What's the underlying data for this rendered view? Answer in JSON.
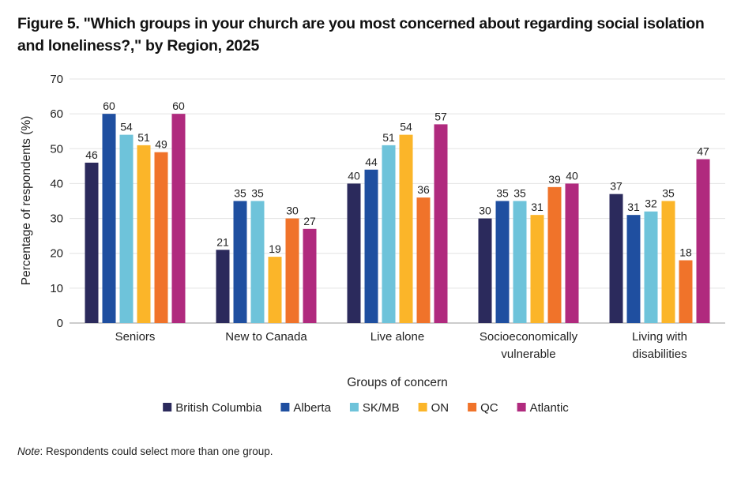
{
  "title": "Figure 5. \"Which groups in your church are you most concerned about regarding social isolation and loneliness?,\" by Region, 2025",
  "note": {
    "lead": "Note",
    "text": ": Respondents could select more than one group."
  },
  "chart_data": {
    "type": "bar",
    "xlabel": "Groups of concern",
    "ylabel": "Percentage of respondents (%)",
    "ylim": [
      0,
      70
    ],
    "yticks": [
      0,
      10,
      20,
      30,
      40,
      50,
      60,
      70
    ],
    "grid": true,
    "legend_position": "bottom",
    "categories": [
      [
        "Seniors"
      ],
      [
        "New to Canada"
      ],
      [
        "Live alone"
      ],
      [
        "Socioeconomically",
        "vulnerable"
      ],
      [
        "Living with",
        "disabilities"
      ]
    ],
    "series": [
      {
        "name": "British Columbia",
        "color": "#2b2a5c",
        "values": [
          46,
          21,
          40,
          30,
          37
        ]
      },
      {
        "name": "Alberta",
        "color": "#1f4fa0",
        "values": [
          60,
          35,
          44,
          35,
          31
        ]
      },
      {
        "name": "SK/MB",
        "color": "#6ec3da",
        "values": [
          54,
          35,
          51,
          35,
          32
        ]
      },
      {
        "name": "ON",
        "color": "#fbb529",
        "values": [
          51,
          19,
          54,
          31,
          35
        ]
      },
      {
        "name": "QC",
        "color": "#f0732a",
        "values": [
          49,
          30,
          36,
          39,
          18
        ]
      },
      {
        "name": "Atlantic",
        "color": "#b02a7e",
        "values": [
          60,
          27,
          57,
          40,
          47
        ]
      }
    ]
  }
}
